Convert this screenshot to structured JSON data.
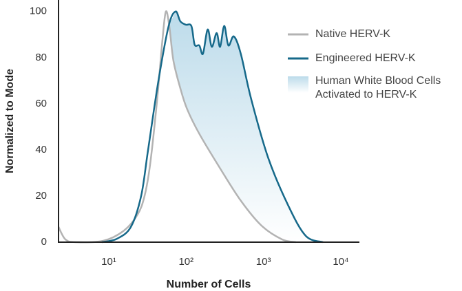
{
  "chart_data": {
    "type": "line",
    "xlabel": "Number of Cells",
    "ylabel": "Normalized to Mode",
    "log_x": true,
    "xlim": [
      2.24,
      16700
    ],
    "ylim": [
      0,
      105
    ],
    "xticks": [
      {
        "value": 10,
        "label": "10¹"
      },
      {
        "value": 100,
        "label": "10²"
      },
      {
        "value": 1000,
        "label": "10³"
      },
      {
        "value": 10000,
        "label": "10⁴"
      }
    ],
    "yticks": [
      0,
      20,
      40,
      60,
      80,
      100
    ],
    "series": [
      {
        "name": "Native HERV-K",
        "color": "#b3b3b3",
        "x": [
          2.24,
          2.75,
          3.75,
          8.5,
          15.7,
          23.6,
          29,
          34.2,
          41.9,
          49.4,
          54.7,
          60.6,
          68.5,
          84.2,
          103,
          148,
          275,
          509,
          941,
          1740,
          2620
        ],
        "values": [
          6.6,
          1.2,
          0,
          0.6,
          5,
          12,
          20,
          33.6,
          60.7,
          87.7,
          100,
          93.7,
          78.7,
          66.7,
          57.7,
          47,
          32,
          18,
          7.2,
          1.2,
          0
        ]
      },
      {
        "name": "Engineered HERV-K",
        "color": "#16698a",
        "x": [
          8.15,
          12.8,
          19.3,
          26.2,
          32.1,
          43.7,
          59.4,
          73,
          84,
          99,
          117,
          129,
          148,
          165,
          190,
          215,
          248,
          275,
          311,
          352,
          414,
          509,
          692,
          1150,
          2110,
          3530,
          5900
        ],
        "values": [
          0,
          1.5,
          6.6,
          20,
          39.6,
          69.7,
          93.7,
          100,
          95.8,
          94.3,
          93.7,
          85.6,
          85.3,
          81.7,
          92.2,
          84.7,
          90.7,
          84.7,
          93.8,
          85.3,
          89.2,
          81.7,
          62.2,
          36.6,
          15.6,
          2.7,
          0
        ]
      }
    ],
    "shaded_region": {
      "name": "Human White Blood Cells Activated to HERV-K",
      "color": "#bcdbea"
    }
  }
}
